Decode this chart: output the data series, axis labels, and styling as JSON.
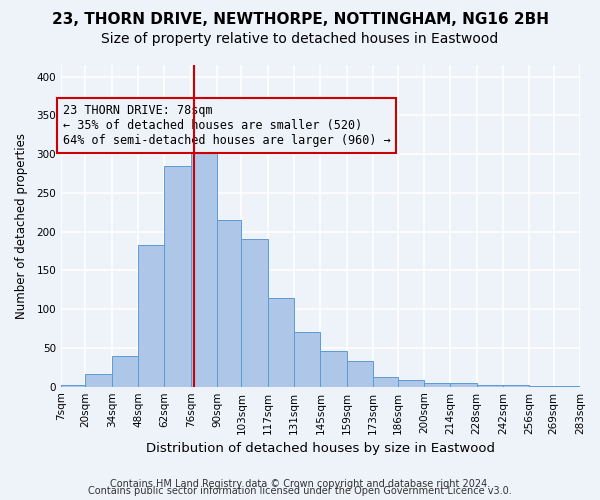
{
  "title1": "23, THORN DRIVE, NEWTHORPE, NOTTINGHAM, NG16 2BH",
  "title2": "Size of property relative to detached houses in Eastwood",
  "xlabel": "Distribution of detached houses by size in Eastwood",
  "ylabel": "Number of detached properties",
  "bar_color": "#aec6e8",
  "bar_edge_color": "#5b9bd5",
  "vline_color": "#cc0000",
  "vline_x": 78,
  "annotation_text": "23 THORN DRIVE: 78sqm\n← 35% of detached houses are smaller (520)\n64% of semi-detached houses are larger (960) →",
  "bin_edges": [
    7,
    20,
    34,
    48,
    62,
    76,
    90,
    103,
    117,
    131,
    145,
    159,
    173,
    186,
    200,
    214,
    228,
    242,
    256,
    269,
    283
  ],
  "bar_heights": [
    2,
    17,
    40,
    183,
    285,
    313,
    215,
    190,
    115,
    70,
    46,
    33,
    12,
    8,
    5,
    5,
    2,
    2,
    1,
    1
  ],
  "ylim": [
    0,
    415
  ],
  "yticks": [
    0,
    50,
    100,
    150,
    200,
    250,
    300,
    350,
    400
  ],
  "footer1": "Contains HM Land Registry data © Crown copyright and database right 2024.",
  "footer2": "Contains public sector information licensed under the Open Government Licence v3.0.",
  "background_color": "#eef2f9",
  "grid_color": "#ffffff",
  "title1_fontsize": 11,
  "title2_fontsize": 10,
  "xlabel_fontsize": 9.5,
  "ylabel_fontsize": 8.5,
  "footer_fontsize": 7,
  "annotation_fontsize": 8.5,
  "tick_fontsize": 7.5
}
